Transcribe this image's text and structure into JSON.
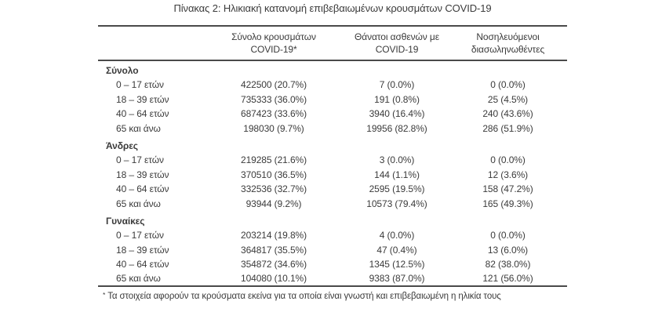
{
  "title": "Πίνακας 2: Ηλικιακή κατανομή επιβεβαιωμένων κρουσμάτων COVID-19",
  "table": {
    "columns": [
      {
        "lines": [
          "",
          ""
        ]
      },
      {
        "lines": [
          "Σύνολο κρουσμάτων",
          "COVID-19*"
        ]
      },
      {
        "lines": [
          "Θάνατοι ασθενών με",
          "COVID-19"
        ]
      },
      {
        "lines": [
          "Νοσηλευόμενοι",
          "διασωληνωθέντες"
        ]
      }
    ],
    "sections": [
      {
        "label": "Σύνολο",
        "rows": [
          {
            "label": "0 – 17 ετών",
            "cases": "422500 (20.7%)",
            "deaths": "7 (0.0%)",
            "intubated": "0 (0.0%)"
          },
          {
            "label": "18 – 39 ετών",
            "cases": "735333 (36.0%)",
            "deaths": "191 (0.8%)",
            "intubated": "25 (4.5%)"
          },
          {
            "label": "40 – 64 ετών",
            "cases": "687423 (33.6%)",
            "deaths": "3940 (16.4%)",
            "intubated": "240 (43.6%)"
          },
          {
            "label": "65 και άνω",
            "cases": "198030 (9.7%)",
            "deaths": "19956 (82.8%)",
            "intubated": "286 (51.9%)"
          }
        ]
      },
      {
        "label": "Άνδρες",
        "rows": [
          {
            "label": "0 – 17 ετών",
            "cases": "219285 (21.6%)",
            "deaths": "3 (0.0%)",
            "intubated": "0 (0.0%)"
          },
          {
            "label": "18 – 39 ετών",
            "cases": "370510 (36.5%)",
            "deaths": "144 (1.1%)",
            "intubated": "12 (3.6%)"
          },
          {
            "label": "40 – 64 ετών",
            "cases": "332536 (32.7%)",
            "deaths": "2595 (19.5%)",
            "intubated": "158 (47.2%)"
          },
          {
            "label": "65 και άνω",
            "cases": "93944 (9.2%)",
            "deaths": "10573 (79.4%)",
            "intubated": "165 (49.3%)"
          }
        ]
      },
      {
        "label": "Γυναίκες",
        "rows": [
          {
            "label": "0 – 17 ετών",
            "cases": "203214 (19.8%)",
            "deaths": "4 (0.0%)",
            "intubated": "0 (0.0%)"
          },
          {
            "label": "18 – 39 ετών",
            "cases": "364817 (35.5%)",
            "deaths": "47 (0.4%)",
            "intubated": "13 (6.0%)"
          },
          {
            "label": "40 – 64 ετών",
            "cases": "354872 (34.6%)",
            "deaths": "1345 (12.5%)",
            "intubated": "82 (38.0%)"
          },
          {
            "label": "65 και άνω",
            "cases": "104080 (10.1%)",
            "deaths": "9383 (87.0%)",
            "intubated": "121 (56.0%)"
          }
        ]
      }
    ]
  },
  "footnote": {
    "marker": "*",
    "text": "Τα στοιχεία αφορούν τα κρούσματα εκείνα για τα οποία είναι γνωστή και επιβεβαιωμένη η ηλικία τους"
  },
  "colors": {
    "text": "#3b3b3b",
    "border": "#4a4a4a",
    "background": "#ffffff"
  }
}
